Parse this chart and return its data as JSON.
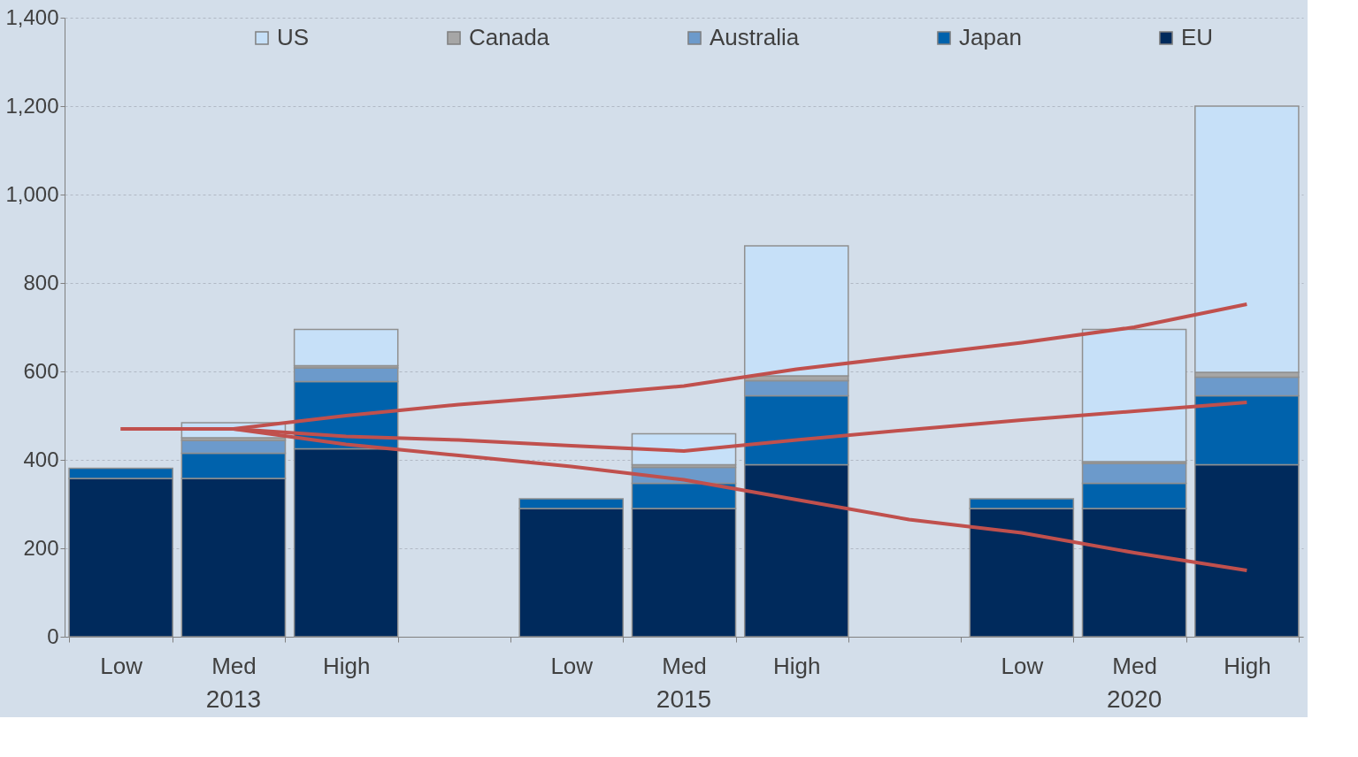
{
  "chart_data": {
    "type": "bar",
    "stacked": true,
    "categories": [
      "Low",
      "Med",
      "High",
      null,
      "Low",
      "Med",
      "High",
      null,
      "Low",
      "Med",
      "High"
    ],
    "series": [
      {
        "name": "EU",
        "color": "#002a5c",
        "values": [
          358,
          358,
          425,
          null,
          290,
          290,
          389,
          null,
          290,
          290,
          389
        ]
      },
      {
        "name": "Japan",
        "color": "#0062ac",
        "values": [
          23,
          57,
          152,
          null,
          22,
          57,
          156,
          null,
          22,
          57,
          156
        ]
      },
      {
        "name": "Australia",
        "color": "#6c9acb",
        "values": [
          null,
          29,
          31,
          null,
          null,
          36,
          34,
          null,
          null,
          45,
          42
        ]
      },
      {
        "name": "Canada",
        "color": "#a6a6a6",
        "values": [
          null,
          6,
          5,
          null,
          null,
          6,
          11,
          null,
          null,
          4,
          11
        ]
      },
      {
        "name": "US",
        "color": "#c6e0f8",
        "values": [
          null,
          34,
          82,
          null,
          null,
          70,
          294,
          null,
          null,
          299,
          602
        ]
      },
      {
        "type": "line",
        "color": "#c0504d",
        "values": [
          470,
          470,
          500,
          525,
          545,
          567,
          605,
          635,
          665,
          700,
          752
        ]
      },
      {
        "type": "line",
        "color": "#c0504d",
        "values": [
          470,
          470,
          453,
          445,
          432,
          420,
          445,
          468,
          490,
          510,
          530
        ]
      },
      {
        "type": "line",
        "color": "#c0504d",
        "values": [
          470,
          470,
          435,
          410,
          385,
          355,
          310,
          265,
          235,
          190,
          150
        ]
      }
    ],
    "ylim": [
      0,
      1400
    ],
    "yticks": [
      0,
      200,
      400,
      600,
      800,
      {
        "value": 1000,
        "label": "1,000"
      },
      {
        "value": 1200,
        "label": "1,200"
      },
      {
        "value": 1400,
        "label": "1,400"
      }
    ],
    "grid": "y",
    "legend": "top",
    "annotations": [
      "2013",
      "2015",
      "2020"
    ]
  }
}
